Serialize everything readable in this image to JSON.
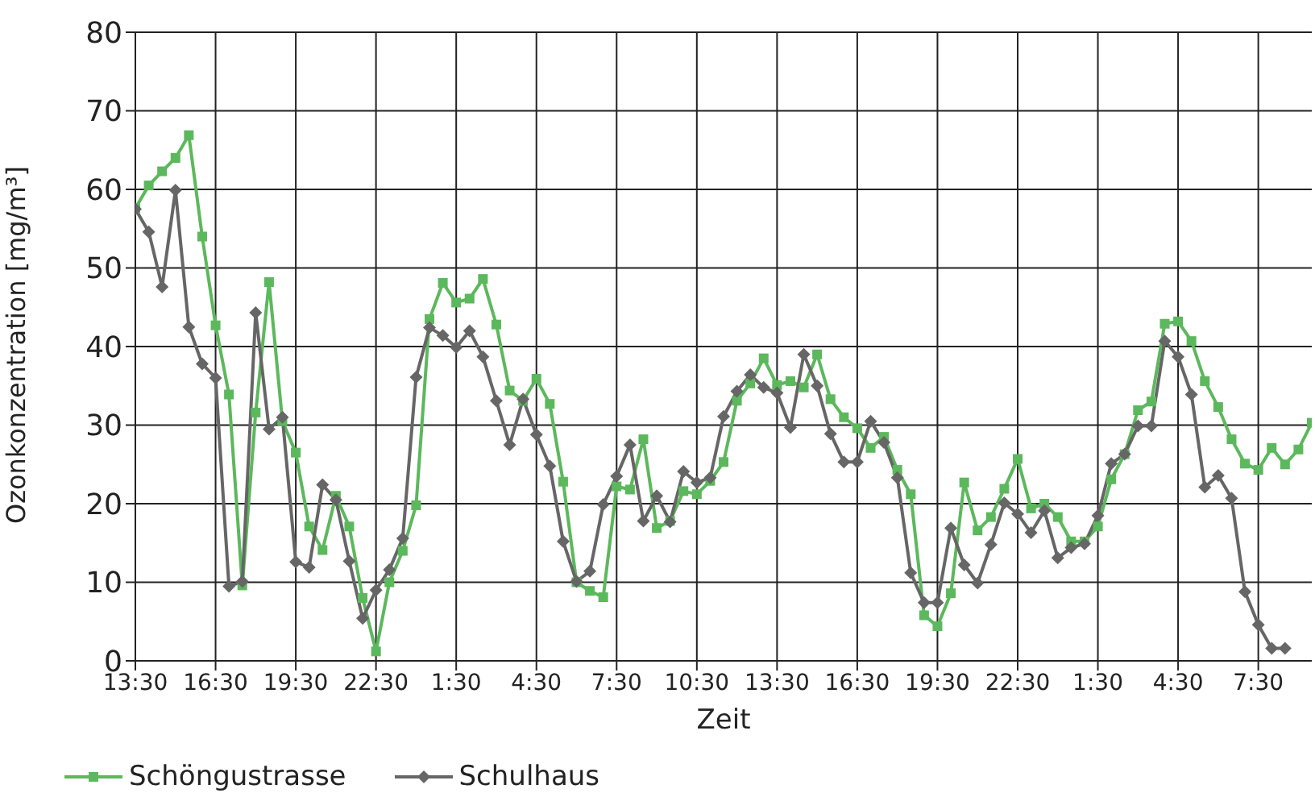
{
  "chart_data": {
    "type": "line",
    "xlabel": "Zeit",
    "ylabel": "Ozonkonzentration [mg/m³]",
    "categories": [
      "13:30",
      null,
      null,
      null,
      null,
      null,
      "16:30",
      null,
      null,
      null,
      null,
      null,
      "19:30",
      null,
      null,
      null,
      null,
      null,
      "22:30",
      null,
      null,
      null,
      null,
      null,
      "1:30",
      null,
      null,
      null,
      null,
      null,
      "4:30",
      null,
      null,
      null,
      null,
      null,
      "7:30",
      null,
      null,
      null,
      null,
      null,
      "10:30",
      null,
      null,
      null,
      null,
      null,
      "13:30",
      null,
      null,
      null,
      null,
      null,
      "16:30",
      null,
      null,
      null,
      null,
      null,
      "19:30",
      null,
      null,
      null,
      null,
      null,
      "22:30",
      null,
      null,
      null,
      null,
      null,
      "1:30",
      null,
      null,
      null,
      null,
      null,
      "4:30",
      null,
      null,
      null,
      null,
      null,
      "7:30",
      null,
      null,
      null,
      null
    ],
    "series": [
      {
        "name": "Schöngustrasse",
        "color": "#5cb85c",
        "marker": "square",
        "values": [
          57.6,
          60.5,
          62.3,
          64.0,
          66.9,
          54.0,
          42.7,
          33.9,
          9.6,
          31.6,
          48.2,
          30.5,
          26.5,
          17.1,
          14.1,
          21.0,
          17.1,
          8,
          1.2,
          10.0,
          14.0,
          19.8,
          43.5,
          48.1,
          45.6,
          46.1,
          48.6,
          42.8,
          34.4,
          33.1,
          35.9,
          32.7,
          22.8,
          10.0,
          8.9,
          8.1,
          22.2,
          21.8,
          28.2,
          16.9,
          17.8,
          21.6,
          21.2,
          22.9,
          25.3,
          33.1,
          35.3,
          38.5,
          35.1,
          35.6,
          34.8,
          39.0,
          33.3,
          31.0,
          29.6,
          27.1,
          28.5,
          24.3,
          21.2,
          5.8,
          4.4,
          8.6,
          22.7,
          16.6,
          18.3,
          21.9,
          25.7,
          19.4,
          20.0,
          18.3,
          15.2,
          15.2,
          17.1,
          23.1,
          26.3,
          31.9,
          33.0,
          42.9,
          43.2,
          40.7,
          35.6,
          32.3,
          28.2,
          25.1,
          24.3,
          27.1,
          25.0,
          26.9,
          30.3
        ]
      },
      {
        "name": "Schulhaus",
        "color": "#666666",
        "marker": "diamond",
        "values": [
          57.5,
          54.6,
          47.6,
          59.9,
          42.5,
          37.8,
          36.0,
          9.5,
          10.1,
          44.3,
          29.5,
          31.0,
          12.6,
          11.9,
          22.4,
          20.5,
          12.7,
          5.4,
          9.0,
          11.6,
          15.6,
          36.1,
          42.4,
          41.4,
          39.9,
          42.0,
          38.7,
          33.1,
          27.5,
          33.3,
          28.8,
          24.8,
          15.2,
          10.1,
          11.4,
          19.9,
          23.5,
          27.5,
          17.8,
          21.0,
          17.7,
          24.1,
          22.7,
          23.3,
          31.1,
          34.3,
          36.4,
          34.8,
          34.1,
          29.7,
          39.0,
          35.0,
          28.9,
          25.3,
          25.3,
          30.5,
          27.8,
          23.3,
          11.2,
          7.4,
          7.4,
          16.9,
          12.2,
          9.9,
          14.8,
          20.1,
          18.7,
          16.3,
          19.1,
          13.1,
          14.4,
          14.9,
          18.5,
          25.1,
          26.3,
          29.9,
          29.9,
          40.7,
          38.7,
          33.9,
          22.1,
          23.6,
          20.7,
          8.8,
          4.6,
          1.6,
          1.6,
          null,
          null
        ]
      }
    ],
    "ylim": [
      0,
      80
    ],
    "yticks": [
      0,
      10,
      20,
      30,
      40,
      50,
      60,
      70,
      80
    ],
    "grid": true,
    "legend": "bottom left"
  }
}
